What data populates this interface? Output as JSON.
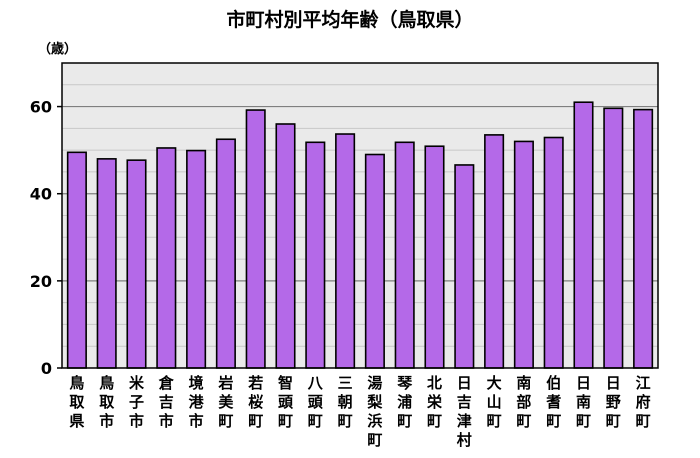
{
  "chart_data": {
    "type": "bar",
    "title": "市町村別平均年齢（鳥取県）",
    "unit_label": "（歳）",
    "categories": [
      "鳥取県",
      "鳥取市",
      "米子市",
      "倉吉市",
      "境港市",
      "岩美町",
      "若桜町",
      "智頭町",
      "八頭町",
      "三朝町",
      "湯梨浜町",
      "琴浦町",
      "北栄町",
      "日吉津村",
      "大山町",
      "南部町",
      "伯耆町",
      "日南町",
      "日野町",
      "江府町"
    ],
    "values": [
      49.5,
      48.0,
      47.7,
      50.5,
      49.9,
      52.5,
      59.2,
      56.0,
      51.8,
      53.7,
      49.0,
      51.8,
      50.9,
      46.6,
      53.5,
      52.0,
      52.9,
      61.0,
      59.6,
      59.3
    ],
    "ylim": [
      0,
      70
    ],
    "yticks": [
      0,
      20,
      40,
      60
    ],
    "grid": true,
    "colors": {
      "bar": "#b469e8",
      "bar_stroke": "#000000",
      "plot_bg": "#eaeaea",
      "grid_major": "#7f7f7f",
      "grid_minor": "#c8c8c8"
    }
  }
}
